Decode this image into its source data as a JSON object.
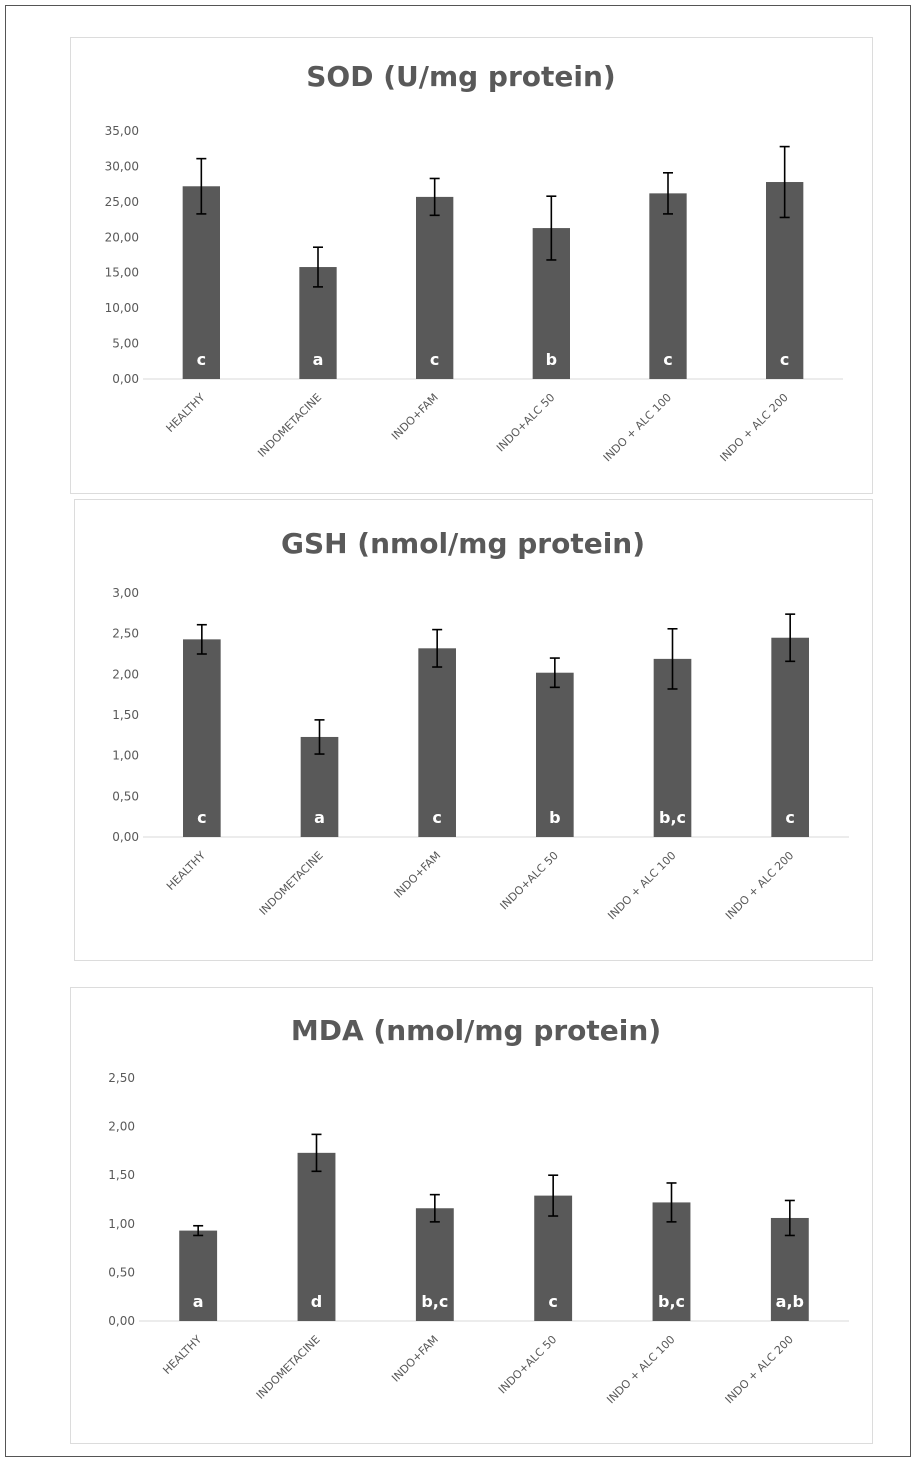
{
  "chart_data": [
    {
      "type": "bar",
      "title": "SOD (U/mg protein)",
      "categories": [
        "HEALTHY",
        "INDOMETACINE",
        "INDO+FAM",
        "INDO+ALC 50",
        "INDO + ALC 100",
        "INDO + ALC 200"
      ],
      "values": [
        27.2,
        15.8,
        25.7,
        21.3,
        26.2,
        27.8
      ],
      "errors": [
        3.9,
        2.8,
        2.6,
        4.5,
        2.9,
        5.0
      ],
      "bar_labels": [
        "c",
        "a",
        "c",
        "b",
        "c",
        "c"
      ],
      "yticks": [
        "0,00",
        "5,00",
        "10,00",
        "15,00",
        "20,00",
        "25,00",
        "30,00",
        "35,00"
      ],
      "ylim": [
        0,
        35
      ],
      "bar_color": "#595959"
    },
    {
      "type": "bar",
      "title": "GSH (nmol/mg protein)",
      "categories": [
        "HEALTHY",
        "INDOMETACINE",
        "INDO+FAM",
        "INDO+ALC 50",
        "INDO + ALC 100",
        "INDO + ALC 200"
      ],
      "values": [
        2.43,
        1.23,
        2.32,
        2.02,
        2.19,
        2.45
      ],
      "errors": [
        0.18,
        0.21,
        0.23,
        0.18,
        0.37,
        0.29
      ],
      "bar_labels": [
        "c",
        "a",
        "c",
        "b",
        "b,c",
        "c"
      ],
      "yticks": [
        "0,00",
        "0,50",
        "1,00",
        "1,50",
        "2,00",
        "2,50",
        "3,00"
      ],
      "ylim": [
        0,
        3
      ],
      "bar_color": "#595959"
    },
    {
      "type": "bar",
      "title": "MDA (nmol/mg protein)",
      "categories": [
        "HEALTHY",
        "INDOMETACINE",
        "INDO+FAM",
        "INDO+ALC 50",
        "INDO + ALC 100",
        "INDO + ALC 200"
      ],
      "values": [
        0.93,
        1.73,
        1.16,
        1.29,
        1.22,
        1.06
      ],
      "errors": [
        0.05,
        0.19,
        0.14,
        0.21,
        0.2,
        0.18
      ],
      "bar_labels": [
        "a",
        "d",
        "b,c",
        "c",
        "b,c",
        "a,b"
      ],
      "yticks": [
        "0,00",
        "0,50",
        "1,00",
        "1,50",
        "2,00",
        "2,50"
      ],
      "ylim": [
        0,
        2.5
      ],
      "bar_color": "#595959"
    }
  ]
}
